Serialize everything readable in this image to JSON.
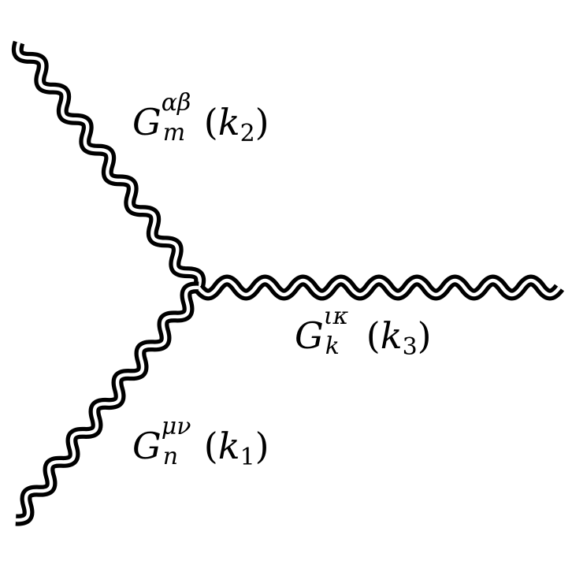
{
  "propagators": {
    "g2": {
      "symbol": "G",
      "sup": "αβ",
      "sub": "m",
      "arg_open": "(",
      "arg_var": "k",
      "arg_index": "2",
      "arg_close": ")"
    },
    "g3": {
      "symbol": "G",
      "sup": "ικ",
      "sub": "k",
      "arg_open": "(",
      "arg_var": "k",
      "arg_index": "3",
      "arg_close": ")"
    },
    "g1": {
      "symbol": "G",
      "sup": "μν",
      "sub": "n",
      "arg_open": "(",
      "arg_var": "k",
      "arg_index": "1",
      "arg_close": ")"
    }
  },
  "colors": {
    "line": "#000000",
    "gap": "#ffffff",
    "background": "#ffffff"
  }
}
